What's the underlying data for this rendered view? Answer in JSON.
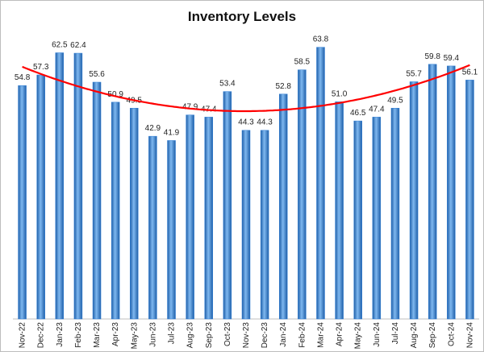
{
  "chart_data": {
    "type": "bar",
    "title": "Inventory Levels",
    "categories": [
      "Nov-22",
      "Dec-22",
      "Jan-23",
      "Feb-23",
      "Mar-23",
      "Apr-23",
      "May-23",
      "Jun-23",
      "Jul-23",
      "Aug-23",
      "Sep-23",
      "Oct-23",
      "Nov-23",
      "Dec-23",
      "Jan-24",
      "Feb-24",
      "Mar-24",
      "Apr-24",
      "May-24",
      "Jun-24",
      "Jul-24",
      "Aug-24",
      "Sep-24",
      "Oct-24",
      "Nov-24"
    ],
    "values": [
      54.8,
      57.3,
      62.5,
      62.4,
      55.6,
      50.9,
      49.5,
      42.9,
      41.9,
      47.9,
      47.4,
      53.4,
      44.3,
      44.3,
      52.8,
      58.5,
      63.8,
      51.0,
      46.5,
      47.4,
      49.5,
      55.7,
      59.8,
      59.4,
      56.1
    ],
    "value_labels": [
      "54.8",
      "57.3",
      "62.5",
      "62.4",
      "55.6",
      "50.9",
      "49.5",
      "42.9",
      "41.9",
      "47.9",
      "47.4",
      "53.4",
      "44.3",
      "44.3",
      "52.8",
      "58.5",
      "63.8",
      "51.0",
      "46.5",
      "47.4",
      "49.5",
      "55.7",
      "59.8",
      "59.4",
      "56.1"
    ],
    "color": "#2f7fd8",
    "ylim": [
      0,
      66
    ],
    "trendline": {
      "kind": "polynomial",
      "order": 2,
      "color": "#ff0000"
    }
  }
}
